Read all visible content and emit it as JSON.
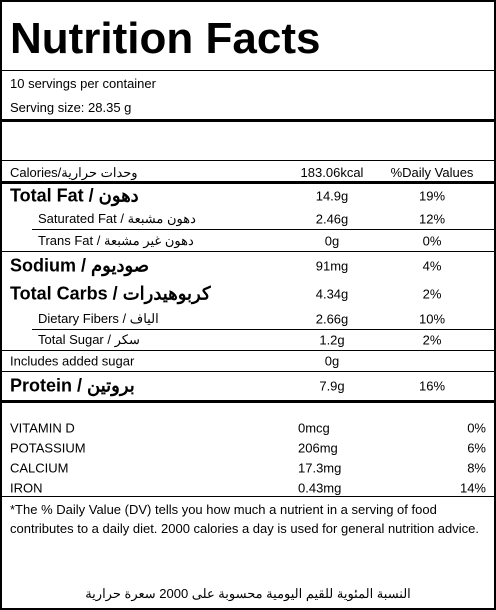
{
  "header": {
    "title": "Nutrition Facts",
    "servings": "10 servings per container",
    "serving_size": "Serving size: 28.35 g"
  },
  "calories": {
    "label": "Calories/وحدات حرارية",
    "value": "183.06kcal",
    "dv_header": "%Daily Values"
  },
  "nutrients": [
    {
      "label": "Total Fat / دهون",
      "amount": "14.9g",
      "dv": "19%"
    },
    {
      "label": "Saturated Fat / دهون مشبعة",
      "amount": "2.46g",
      "dv": "12%"
    },
    {
      "label": "Trans Fat / دهون غير مشبعة",
      "amount": "0g",
      "dv": "0%"
    },
    {
      "label": "Sodium / صوديوم",
      "amount": "91mg",
      "dv": "4%"
    },
    {
      "label": "Total Carbs / كربوهيدرات",
      "amount": "4.34g",
      "dv": "2%"
    },
    {
      "label": "Dietary Fibers / الياف",
      "amount": "2.66g",
      "dv": "10%"
    },
    {
      "label": "Total Sugar / سكر",
      "amount": "1.2g",
      "dv": "2%"
    },
    {
      "label": "Includes added sugar",
      "amount": "0g"
    },
    {
      "label": "Protein / بروتين",
      "amount": "7.9g",
      "dv": "16%"
    }
  ],
  "minerals": [
    {
      "label": "VITAMIN D",
      "amount": "0mcg",
      "dv": "0%"
    },
    {
      "label": "POTASSIUM",
      "amount": "206mg",
      "dv": "6%"
    },
    {
      "label": "CALCIUM",
      "amount": "17.3mg",
      "dv": "8%"
    },
    {
      "label": "IRON",
      "amount": "0.43mg",
      "dv": "14%"
    }
  ],
  "footnote": "*The % Daily Value (DV) tells you how much a nutrient in a serving of food contributes to a daily diet. 2000 calories a day is used for general nutrition advice.",
  "footer": "النسبة المئوية للقيم اليومية محسوبة على 2000 سعرة حرارية"
}
